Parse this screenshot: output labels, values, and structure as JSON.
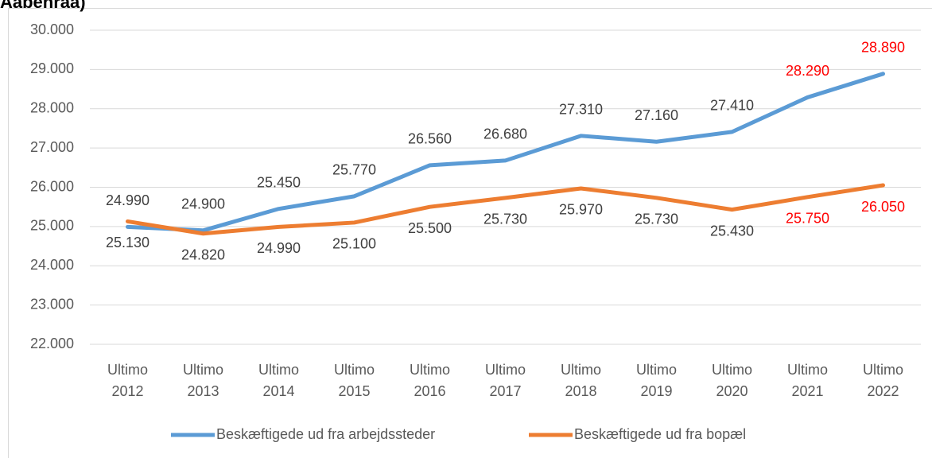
{
  "chart_data": {
    "type": "line",
    "title": "Aabenraa)",
    "categories": [
      "Ultimo 2012",
      "Ultimo 2013",
      "Ultimo 2014",
      "Ultimo 2015",
      "Ultimo 2016",
      "Ultimo 2017",
      "Ultimo 2018",
      "Ultimo 2019",
      "Ultimo 2020",
      "Ultimo 2021",
      "Ultimo 2022"
    ],
    "series": [
      {
        "name": "Beskæftigede ud fra arbejdssteder",
        "color": "#5b9bd5",
        "values": [
          24990,
          24900,
          25450,
          25770,
          26560,
          26680,
          27310,
          27160,
          27410,
          28290,
          28890
        ],
        "value_labels": [
          "24.990",
          "24.900",
          "25.450",
          "25.770",
          "26.560",
          "26.680",
          "27.310",
          "27.160",
          "27.410",
          "28.290",
          "28.890"
        ],
        "label_colors": [
          "#404040",
          "#404040",
          "#404040",
          "#404040",
          "#404040",
          "#404040",
          "#404040",
          "#404040",
          "#404040",
          "#ff0000",
          "#ff0000"
        ],
        "label_position": "above"
      },
      {
        "name": "Beskæftigede ud fra bopæl",
        "color": "#ed7d31",
        "values": [
          25130,
          24820,
          24990,
          25100,
          25500,
          25730,
          25970,
          25730,
          25430,
          25750,
          26050
        ],
        "value_labels": [
          "25.130",
          "24.820",
          "24.990",
          "25.100",
          "25.500",
          "25.730",
          "25.970",
          "25.730",
          "25.430",
          "25.750",
          "26.050"
        ],
        "label_colors": [
          "#404040",
          "#404040",
          "#404040",
          "#404040",
          "#404040",
          "#404040",
          "#404040",
          "#404040",
          "#404040",
          "#ff0000",
          "#ff0000"
        ],
        "label_position": "below"
      }
    ],
    "ylim": [
      22000,
      30000
    ],
    "yticks": [
      {
        "value": 22000,
        "label": "22.000"
      },
      {
        "value": 23000,
        "label": "23.000"
      },
      {
        "value": 24000,
        "label": "24.000"
      },
      {
        "value": 25000,
        "label": "25.000"
      },
      {
        "value": 26000,
        "label": "26.000"
      },
      {
        "value": 27000,
        "label": "27.000"
      },
      {
        "value": 28000,
        "label": "28.000"
      },
      {
        "value": 29000,
        "label": "29.000"
      },
      {
        "value": 30000,
        "label": "30.000"
      }
    ],
    "grid": true,
    "legend": "bottom"
  }
}
